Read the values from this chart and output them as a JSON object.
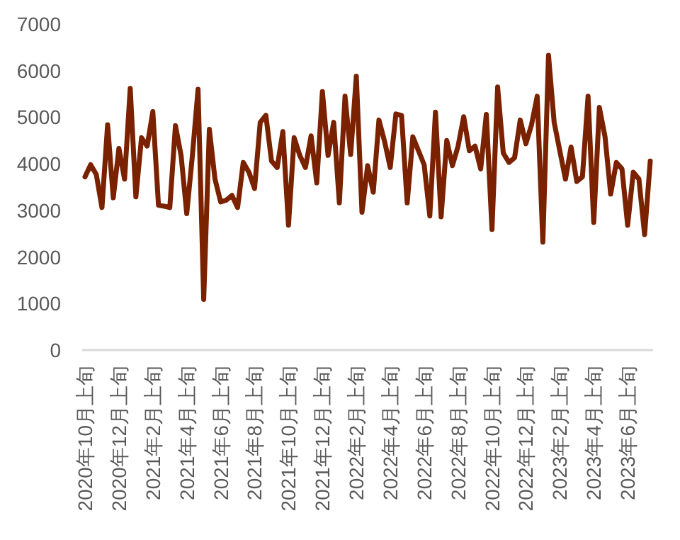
{
  "chart_data": {
    "type": "line",
    "categories": [
      "2020年10月上旬",
      null,
      null,
      null,
      null,
      null,
      "2020年12月上旬",
      null,
      null,
      null,
      null,
      null,
      "2021年2月上旬",
      null,
      null,
      null,
      null,
      null,
      "2021年4月上旬",
      null,
      null,
      null,
      null,
      null,
      "2021年6月上旬",
      null,
      null,
      null,
      null,
      null,
      "2021年8月上旬",
      null,
      null,
      null,
      null,
      null,
      "2021年10月上旬",
      null,
      null,
      null,
      null,
      null,
      "2021年12月上旬",
      null,
      null,
      null,
      null,
      null,
      "2022年2月上旬",
      null,
      null,
      null,
      null,
      null,
      "2022年4月上旬",
      null,
      null,
      null,
      null,
      null,
      "2022年6月上旬",
      null,
      null,
      null,
      null,
      null,
      "2022年8月上旬",
      null,
      null,
      null,
      null,
      null,
      "2022年10月上旬",
      null,
      null,
      null,
      null,
      null,
      "2022年12月上旬",
      null,
      null,
      null,
      null,
      null,
      "2023年2月上旬",
      null,
      null,
      null,
      null,
      null,
      "2023年4月上旬",
      null,
      null,
      null,
      null,
      null,
      "2023年6月上旬",
      null,
      null,
      null,
      null
    ],
    "series": [
      {
        "color": "#7a2100",
        "values": [
          3720,
          3980,
          3770,
          3060,
          4840,
          3270,
          4330,
          3670,
          5620,
          3290,
          4560,
          4380,
          5120,
          3110,
          3090,
          3060,
          4820,
          4180,
          2930,
          4180,
          5600,
          1090,
          4740,
          3670,
          3180,
          3220,
          3320,
          3060,
          4030,
          3820,
          3470,
          4890,
          5040,
          4060,
          3920,
          4690,
          2680,
          4560,
          4180,
          3920,
          4600,
          3590,
          5550,
          4180,
          4890,
          3160,
          5450,
          4200,
          5880,
          2960,
          3960,
          3390,
          4940,
          4480,
          3920,
          5070,
          5040,
          3160,
          4580,
          4280,
          3980,
          2880,
          5110,
          2860,
          4500,
          3960,
          4380,
          5010,
          4280,
          4380,
          3890,
          5060,
          2590,
          5650,
          4230,
          4030,
          4130,
          4940,
          4430,
          4840,
          5450,
          2320,
          6330,
          4890,
          4280,
          3670,
          4360,
          3620,
          3720,
          5450,
          2740,
          5210,
          4580,
          3350,
          4030,
          3890,
          2680,
          3820,
          3670,
          2480,
          4060
        ]
      }
    ],
    "ylim": [
      0,
      7000
    ],
    "yticks": [
      0,
      1000,
      2000,
      3000,
      4000,
      5000,
      6000,
      7000
    ],
    "grid": false,
    "marker": "none",
    "line_style": "solid"
  }
}
